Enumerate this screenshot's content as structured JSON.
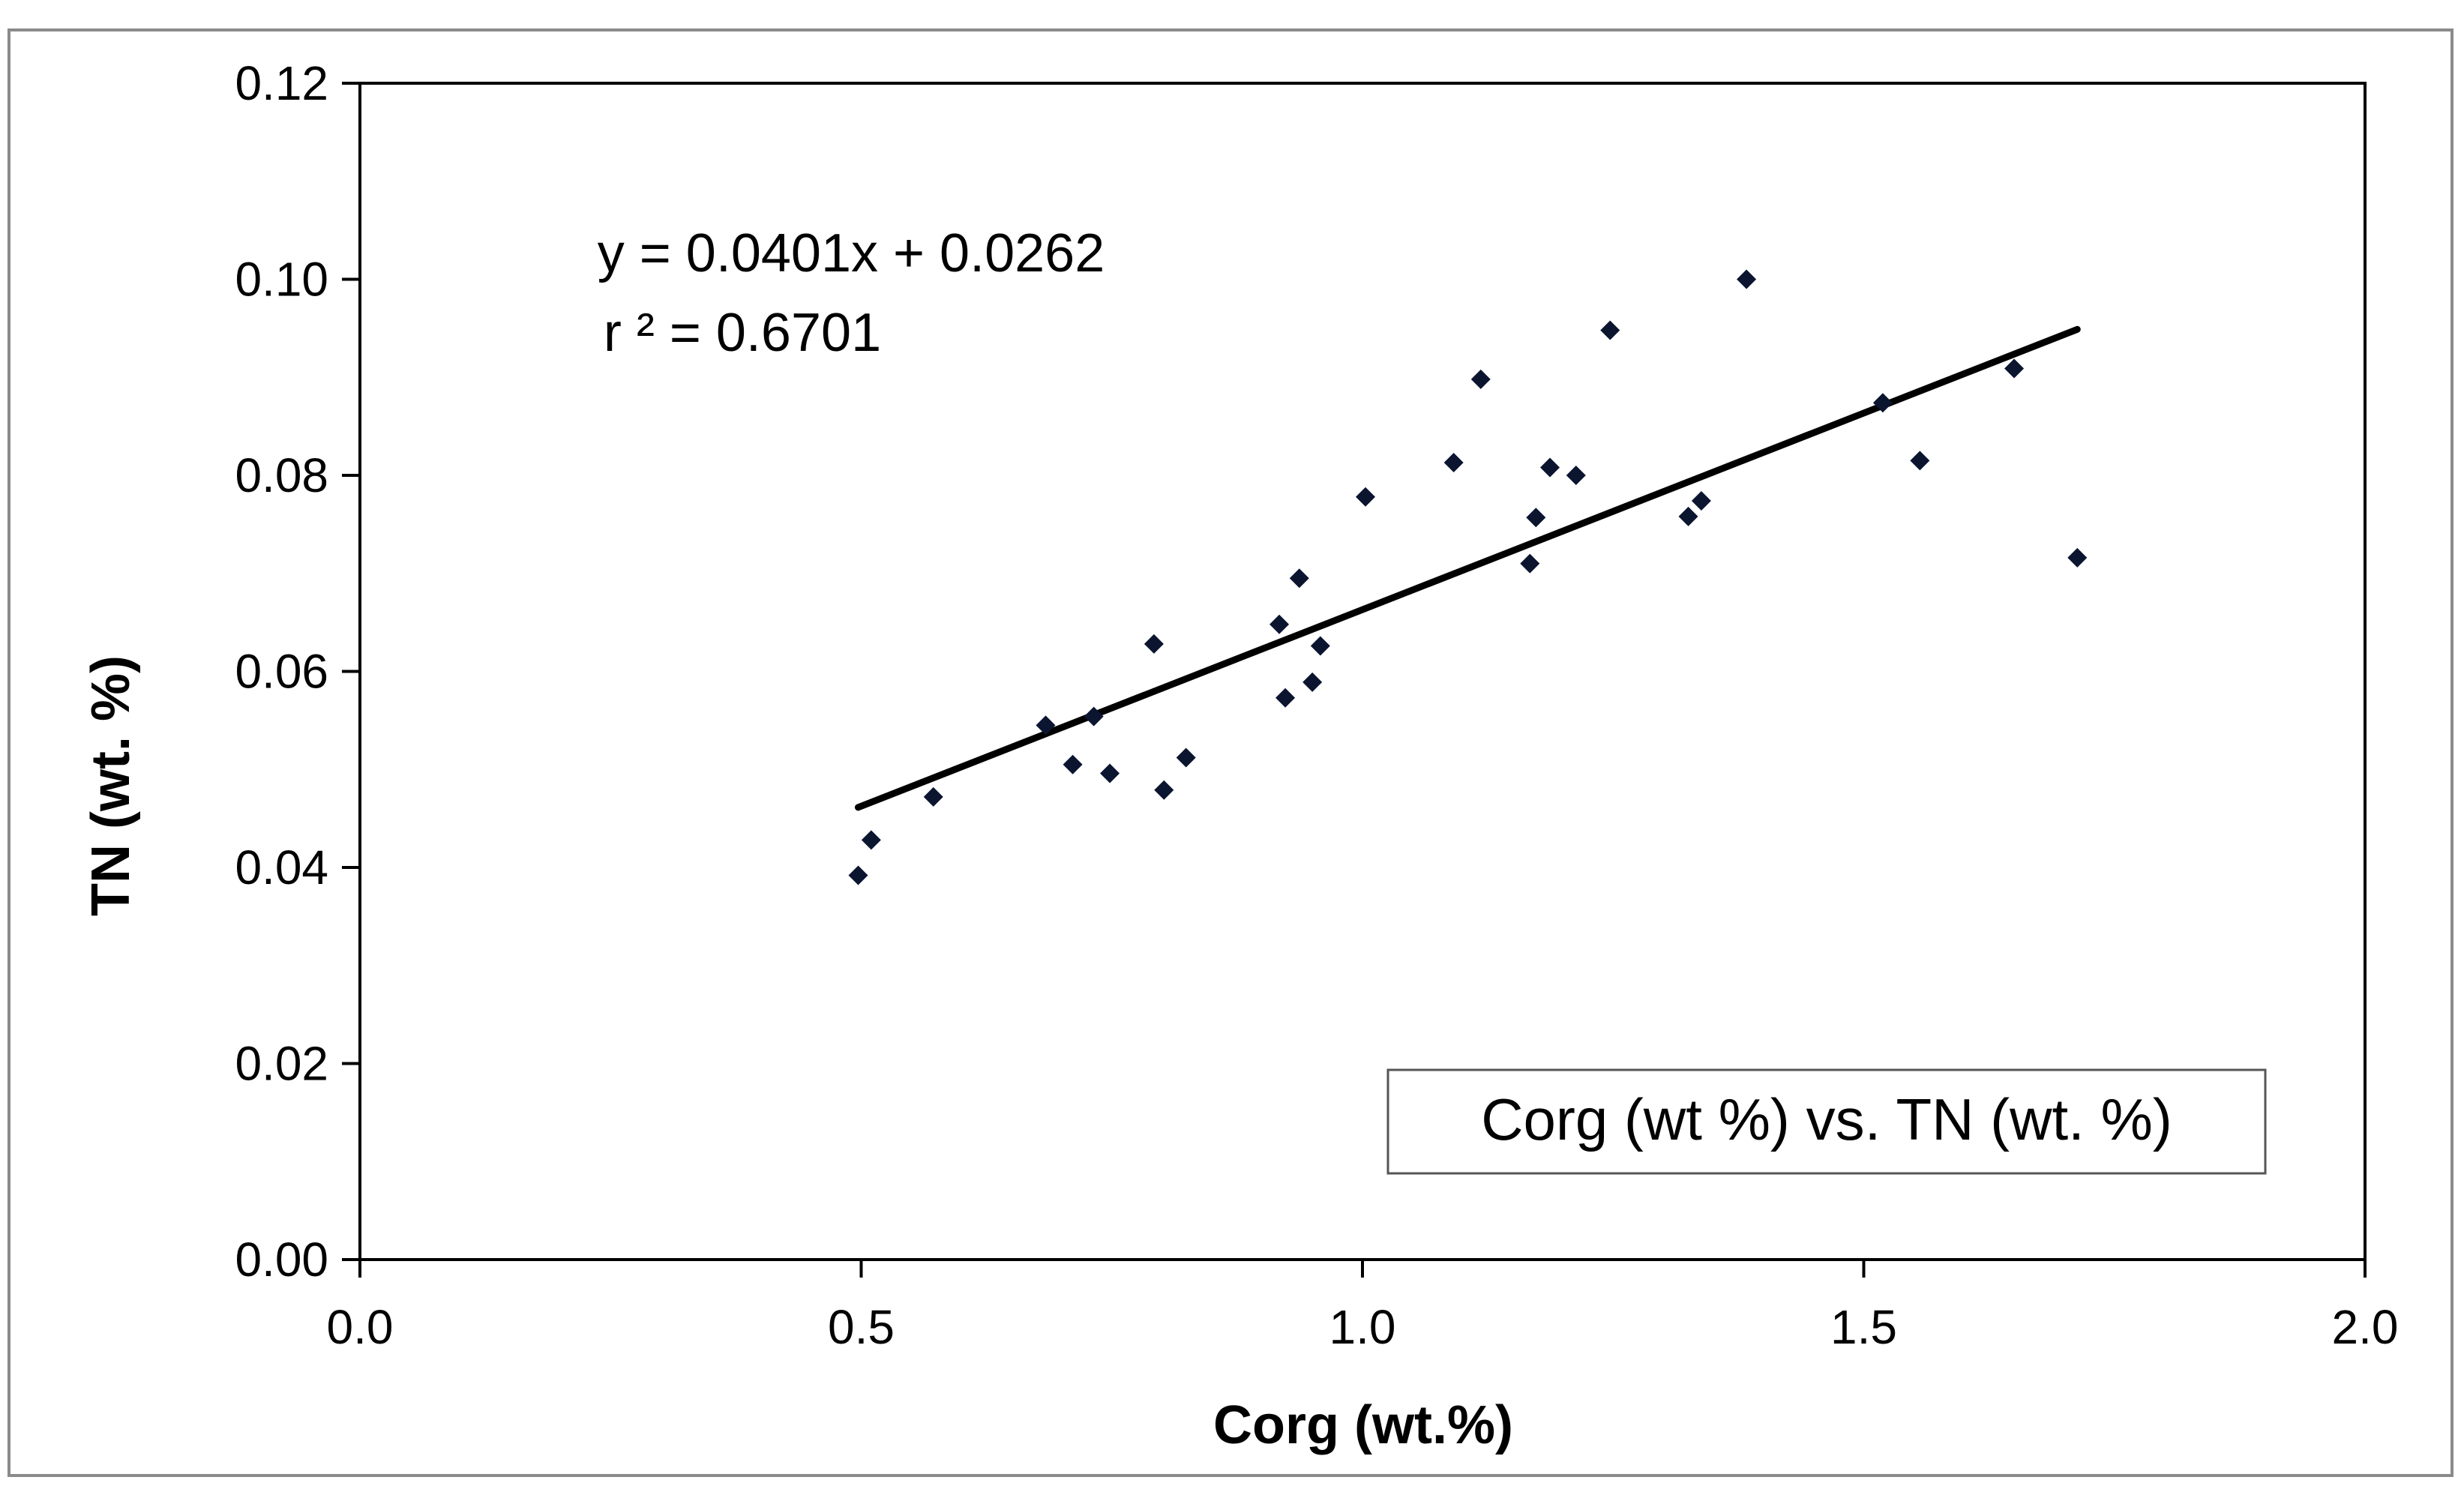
{
  "chart_data": {
    "type": "scatter",
    "title": "",
    "xlabel": "Corg (wt.%)",
    "ylabel": "TN (wt. %)",
    "xlim": [
      0.0,
      2.0
    ],
    "ylim": [
      0.0,
      0.12
    ],
    "xticks": [
      0.0,
      0.5,
      1.0,
      1.5,
      2.0
    ],
    "xtick_labels": [
      "0.0",
      "0.5",
      "1.0",
      "1.5",
      "2.0"
    ],
    "yticks": [
      0.0,
      0.02,
      0.04,
      0.06,
      0.08,
      0.1,
      0.12
    ],
    "ytick_labels": [
      "0.00",
      "0.02",
      "0.04",
      "0.06",
      "0.08",
      "0.10",
      "0.12"
    ],
    "grid": false,
    "legend": {
      "position": "bottom-right",
      "entries": [
        "Corg (wt %) vs. TN (wt. %)"
      ]
    },
    "series": [
      {
        "name": "Corg (wt %) vs. TN (wt. %)",
        "marker": "diamond",
        "color": "#0b1530",
        "points": [
          [
            0.497,
            0.0392
          ],
          [
            0.51,
            0.0428
          ],
          [
            0.572,
            0.0472
          ],
          [
            0.684,
            0.0545
          ],
          [
            0.711,
            0.0505
          ],
          [
            0.732,
            0.0554
          ],
          [
            0.748,
            0.0496
          ],
          [
            0.792,
            0.0628
          ],
          [
            0.802,
            0.0479
          ],
          [
            0.824,
            0.0512
          ],
          [
            0.917,
            0.0648
          ],
          [
            0.923,
            0.0573
          ],
          [
            0.937,
            0.0695
          ],
          [
            0.95,
            0.0589
          ],
          [
            0.958,
            0.0626
          ],
          [
            1.003,
            0.0778
          ],
          [
            1.091,
            0.0813
          ],
          [
            1.118,
            0.0898
          ],
          [
            1.167,
            0.071
          ],
          [
            1.173,
            0.0757
          ],
          [
            1.187,
            0.0808
          ],
          [
            1.213,
            0.08
          ],
          [
            1.247,
            0.0948
          ],
          [
            1.325,
            0.0758
          ],
          [
            1.338,
            0.0774
          ],
          [
            1.383,
            0.1
          ],
          [
            1.519,
            0.0874
          ],
          [
            1.556,
            0.0815
          ],
          [
            1.65,
            0.0909
          ],
          [
            1.713,
            0.0716
          ]
        ]
      }
    ],
    "trendline": {
      "slope": 0.0401,
      "intercept": 0.0262,
      "x_range": [
        0.497,
        1.713
      ],
      "color": "#000000"
    },
    "annotations": {
      "equation": "y = 0.0401x + 0.0262",
      "r_squared": "r ² = 0.6701"
    }
  }
}
